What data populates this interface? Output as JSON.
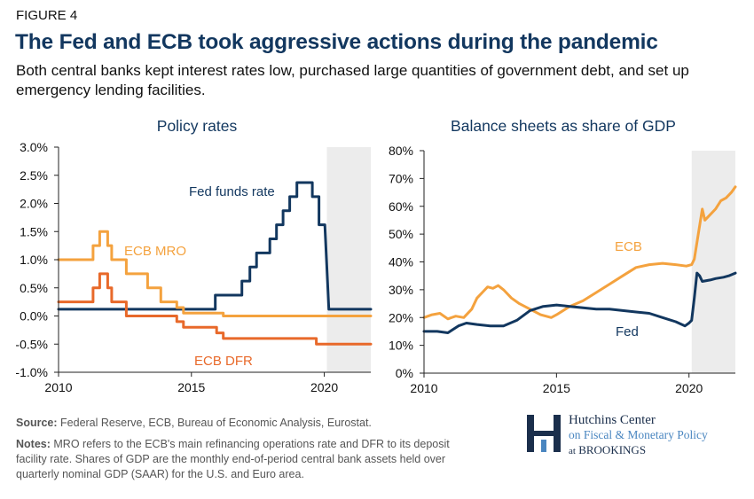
{
  "figure_label": "FIGURE 4",
  "title": "The Fed and ECB took aggressive actions during the pandemic",
  "subtitle": "Both central banks kept interest rates low, purchased large quantities of government debt, and set up emergency lending facilities.",
  "source_label": "Source:",
  "source_text": "Federal Reserve, ECB, Bureau of Economic Analysis, Eurostat.",
  "notes_label": "Notes:",
  "notes_text": "MRO refers to the ECB's main refinancing operations rate and DFR to its deposit facility rate. Shares of GDP are the monthly end-of-period central bank assets held over quarterly nominal GDP (SAAR) for the U.S. and Euro area.",
  "logo": {
    "line1": "Hutchins Center",
    "line2": "on Fiscal & Monetary Policy",
    "line3_prefix": "at",
    "line3_name": "BROOKINGS"
  },
  "colors": {
    "navy": "#12375f",
    "orange_light": "#f4a23e",
    "orange_dark": "#e8692a",
    "shade": "#ececec",
    "axis": "#222222"
  },
  "chart_data": [
    {
      "type": "line",
      "title": "Policy rates",
      "xlim": [
        2010,
        2021.75
      ],
      "ylim": [
        -1.0,
        3.0
      ],
      "x_ticks": [
        2010,
        2015,
        2020
      ],
      "y_ticks": [
        -1.0,
        -0.5,
        0.0,
        0.5,
        1.0,
        1.5,
        2.0,
        2.5,
        3.0
      ],
      "y_tick_labels": [
        "-1.0%",
        "-0.5%",
        "0.0%",
        "0.5%",
        "1.0%",
        "1.5%",
        "2.0%",
        "2.5%",
        "3.0%"
      ],
      "shaded_region": [
        2020.1,
        2021.75
      ],
      "series": [
        {
          "name": "Fed funds rate",
          "color": "#12375f",
          "x": [
            2010,
            2015.9,
            2015.9,
            2016.9,
            2016.9,
            2017.2,
            2017.2,
            2017.45,
            2017.45,
            2017.95,
            2017.95,
            2018.2,
            2018.2,
            2018.45,
            2018.45,
            2018.7,
            2018.7,
            2018.97,
            2018.97,
            2019.55,
            2019.55,
            2019.8,
            2019.8,
            2020.02,
            2020.17,
            2020.17,
            2021.75
          ],
          "y": [
            0.12,
            0.12,
            0.37,
            0.37,
            0.62,
            0.62,
            0.87,
            0.87,
            1.12,
            1.12,
            1.37,
            1.37,
            1.62,
            1.62,
            1.87,
            1.87,
            2.12,
            2.12,
            2.37,
            2.37,
            2.12,
            2.12,
            1.62,
            1.62,
            0.12,
            0.12,
            0.12
          ]
        },
        {
          "name": "ECB MRO",
          "color": "#f4a23e",
          "x": [
            2010,
            2011.3,
            2011.3,
            2011.55,
            2011.55,
            2011.85,
            2011.85,
            2012.0,
            2012.0,
            2012.55,
            2012.55,
            2013.35,
            2013.35,
            2013.85,
            2013.85,
            2014.45,
            2014.45,
            2014.7,
            2014.7,
            2016.2,
            2016.2,
            2021.75
          ],
          "y": [
            1.0,
            1.0,
            1.25,
            1.25,
            1.5,
            1.5,
            1.25,
            1.25,
            1.0,
            1.0,
            0.75,
            0.75,
            0.5,
            0.5,
            0.25,
            0.25,
            0.15,
            0.15,
            0.05,
            0.05,
            0.0,
            0.0
          ]
        },
        {
          "name": "ECB DFR",
          "color": "#e8692a",
          "x": [
            2010,
            2011.3,
            2011.3,
            2011.55,
            2011.55,
            2011.85,
            2011.85,
            2012.0,
            2012.0,
            2012.55,
            2012.55,
            2014.45,
            2014.45,
            2014.7,
            2014.7,
            2015.95,
            2015.95,
            2016.2,
            2016.2,
            2019.7,
            2019.7,
            2021.75
          ],
          "y": [
            0.25,
            0.25,
            0.5,
            0.5,
            0.75,
            0.75,
            0.5,
            0.5,
            0.25,
            0.25,
            0.0,
            0.0,
            -0.1,
            -0.1,
            -0.2,
            -0.2,
            -0.3,
            -0.3,
            -0.4,
            -0.4,
            -0.5,
            -0.5
          ]
        }
      ]
    },
    {
      "type": "line",
      "title": "Balance sheets as share of GDP",
      "xlim": [
        2010,
        2021.75
      ],
      "ylim": [
        0,
        80
      ],
      "x_ticks": [
        2010,
        2015,
        2020
      ],
      "y_ticks": [
        0,
        10,
        20,
        30,
        40,
        50,
        60,
        70,
        80
      ],
      "y_tick_labels": [
        "0%",
        "10%",
        "20%",
        "30%",
        "40%",
        "50%",
        "60%",
        "70%",
        "80%"
      ],
      "shaded_region": [
        2020.1,
        2021.75
      ],
      "series": [
        {
          "name": "ECB",
          "color": "#f4a23e",
          "x": [
            2010,
            2010.3,
            2010.6,
            2010.9,
            2011.2,
            2011.5,
            2011.8,
            2012.0,
            2012.2,
            2012.4,
            2012.6,
            2012.8,
            2013.0,
            2013.3,
            2013.6,
            2014.0,
            2014.4,
            2014.8,
            2015.0,
            2015.5,
            2016.0,
            2016.5,
            2017.0,
            2017.5,
            2018.0,
            2018.5,
            2019.0,
            2019.5,
            2019.9,
            2020.1,
            2020.2,
            2020.35,
            2020.5,
            2020.6,
            2020.8,
            2021.0,
            2021.2,
            2021.4,
            2021.6,
            2021.75
          ],
          "y": [
            20,
            21,
            21.5,
            19.5,
            20.5,
            20,
            23,
            27,
            29,
            31,
            30.5,
            31.5,
            30,
            27,
            25,
            23,
            21,
            20,
            21,
            24,
            26,
            29,
            32,
            35,
            38,
            39,
            39.5,
            39,
            38.5,
            39,
            41,
            50,
            59,
            55,
            57,
            59,
            62,
            63,
            65,
            67
          ]
        },
        {
          "name": "Fed",
          "color": "#12375f",
          "x": [
            2010,
            2010.5,
            2010.9,
            2011.3,
            2011.6,
            2012.0,
            2012.5,
            2013.0,
            2013.5,
            2014.0,
            2014.5,
            2015.0,
            2015.5,
            2016.0,
            2016.5,
            2017.0,
            2017.5,
            2018.0,
            2018.5,
            2019.0,
            2019.5,
            2019.85,
            2020.0,
            2020.1,
            2020.2,
            2020.3,
            2020.4,
            2020.5,
            2020.8,
            2021.0,
            2021.3,
            2021.5,
            2021.75
          ],
          "y": [
            15,
            15,
            14.5,
            17,
            18,
            17.5,
            17,
            17,
            19,
            22.5,
            24,
            24.5,
            24,
            23.5,
            23,
            23,
            22.5,
            22,
            21.5,
            20,
            18.5,
            17,
            18,
            19,
            27,
            36,
            35,
            33,
            33.5,
            34,
            34.5,
            35,
            36
          ]
        }
      ]
    }
  ]
}
